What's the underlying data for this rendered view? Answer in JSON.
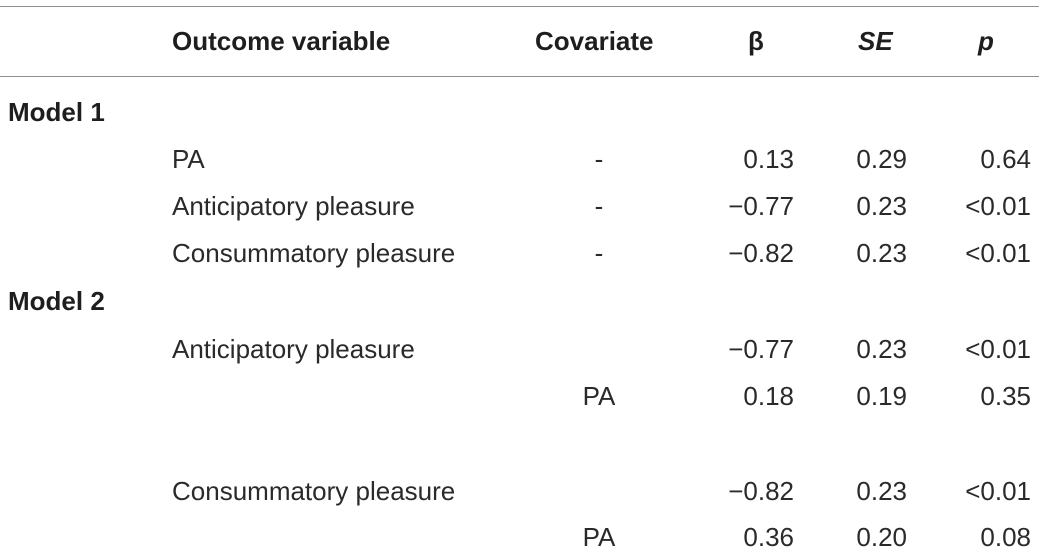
{
  "table": {
    "headers": {
      "outcome": "Outcome variable",
      "covariate": "Covariate",
      "beta": "β",
      "se": "SE",
      "p": "p"
    },
    "model1": {
      "label": "Model 1",
      "rows": [
        {
          "outcome": "PA",
          "covariate": "-",
          "beta": "0.13",
          "se": "0.29",
          "p": "0.64"
        },
        {
          "outcome": "Anticipatory pleasure",
          "covariate": "-",
          "beta": "−0.77",
          "se": "0.23",
          "p": "<0.01"
        },
        {
          "outcome": "Consummatory pleasure",
          "covariate": "-",
          "beta": "−0.82",
          "se": "0.23",
          "p": "<0.01"
        }
      ]
    },
    "model2": {
      "label": "Model 2",
      "rows": [
        {
          "outcome": "Anticipatory pleasure",
          "covariate": "",
          "beta": "−0.77",
          "se": "0.23",
          "p": "<0.01"
        },
        {
          "outcome": "",
          "covariate": "PA",
          "beta": "0.18",
          "se": "0.19",
          "p": "0.35"
        },
        {
          "outcome": "Consummatory pleasure",
          "covariate": "",
          "beta": "−0.82",
          "se": "0.23",
          "p": "<0.01"
        },
        {
          "outcome": "",
          "covariate": "PA",
          "beta": "0.36",
          "se": "0.20",
          "p": "0.08"
        }
      ]
    }
  }
}
